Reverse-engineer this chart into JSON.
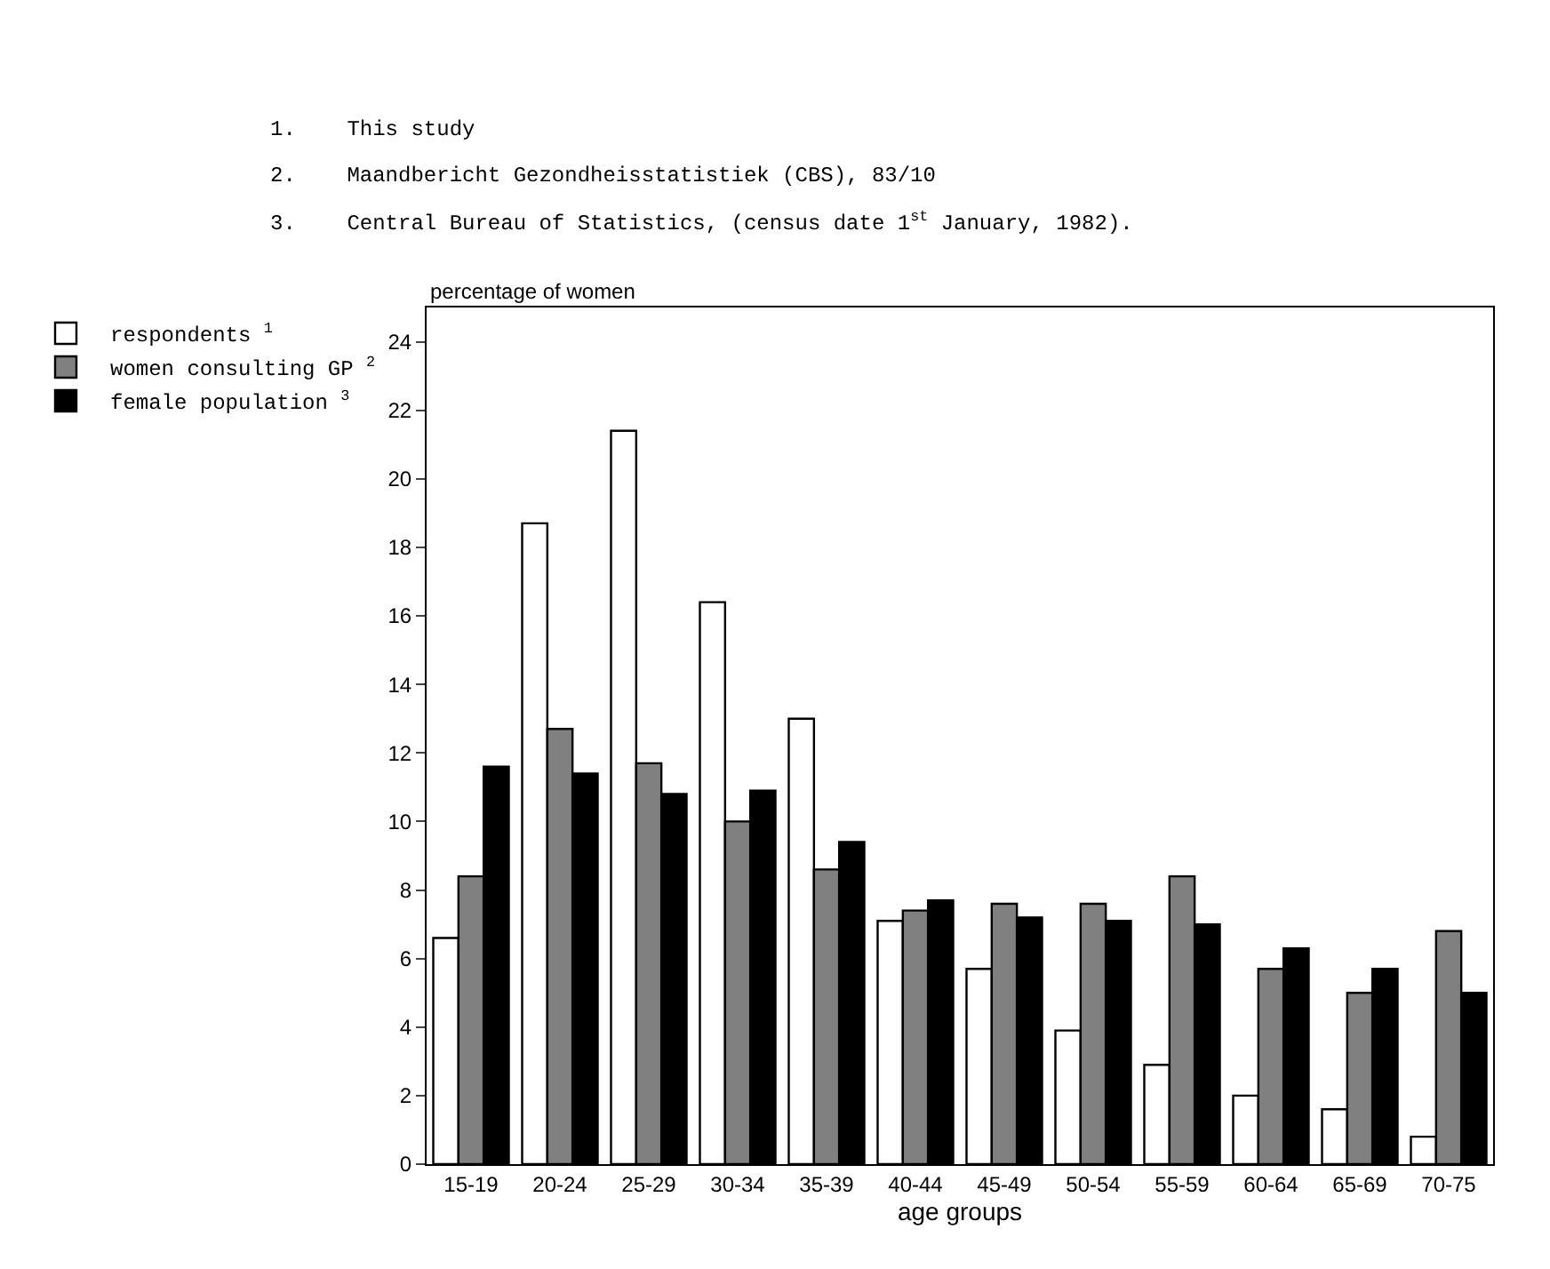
{
  "chart_data": {
    "type": "bar",
    "categories": [
      "15-19",
      "20-24",
      "25-29",
      "30-34",
      "35-39",
      "40-44",
      "45-49",
      "50-54",
      "55-59",
      "60-64",
      "65-69",
      "70-75"
    ],
    "series": [
      {
        "name": "respondents $^{1}$",
        "color": "#ffffff",
        "values": [
          6.6,
          18.7,
          21.4,
          16.4,
          13.0,
          7.1,
          5.7,
          3.9,
          2.9,
          2.0,
          1.6,
          0.8
        ]
      },
      {
        "name": "women consulting GP $^{2}$",
        "color": "#808080",
        "values": [
          8.4,
          12.7,
          11.7,
          10.0,
          8.6,
          7.4,
          7.6,
          7.6,
          8.4,
          5.7,
          5.0,
          6.8
        ]
      },
      {
        "name": "female population $^{3}$",
        "color": "#000000",
        "values": [
          11.6,
          11.4,
          10.8,
          10.9,
          9.4,
          7.7,
          7.2,
          7.1,
          7.0,
          6.3,
          5.7,
          5.0
        ]
      }
    ],
    "xlabel": "age groups",
    "ylabel": "percentage of women",
    "annotations": [
      "1.    This study",
      "2.    Maandbericht Gezondheisstatistiek (CBS), 83/10",
      "3.    Central Bureau of Statistics, (census date 1$^{st}$ January, 1982)."
    ],
    "ylim": [
      0,
      25
    ],
    "yticks": [
      0,
      2,
      4,
      6,
      8,
      10,
      12,
      14,
      16,
      18,
      20,
      22,
      24
    ],
    "legend": "top left"
  }
}
